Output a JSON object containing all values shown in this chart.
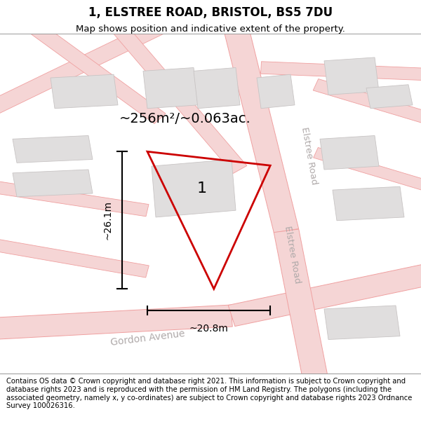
{
  "title": "1, ELSTREE ROAD, BRISTOL, BS5 7DU",
  "subtitle": "Map shows position and indicative extent of the property.",
  "footer": "Contains OS data © Crown copyright and database right 2021. This information is subject to Crown copyright and database rights 2023 and is reproduced with the permission of HM Land Registry. The polygons (including the associated geometry, namely x, y co-ordinates) are subject to Crown copyright and database rights 2023 Ordnance Survey 100026316.",
  "area_text": "~256m²/~0.063ac.",
  "label": "1",
  "dim_height": "~26.1m",
  "dim_width": "~20.8m",
  "map_bg": "#f7f6f6",
  "road_line_color": "#f0a0a0",
  "road_fill_color": "#f5d5d5",
  "building_color": "#e0dede",
  "building_outline": "#c8c4c4",
  "highlight_color": "#cc0000",
  "highlight_lw": 2.0,
  "elstree_road_label": "Elstree Road",
  "gordon_avenue_label": "Gordon Avenue",
  "title_fontsize": 12,
  "subtitle_fontsize": 9.5,
  "footer_fontsize": 7.2,
  "area_fontsize": 14,
  "label_fontsize": 16,
  "dim_fontsize": 10,
  "road_label_color": "#b0aaaa",
  "road_label_fontsize": 9.5
}
